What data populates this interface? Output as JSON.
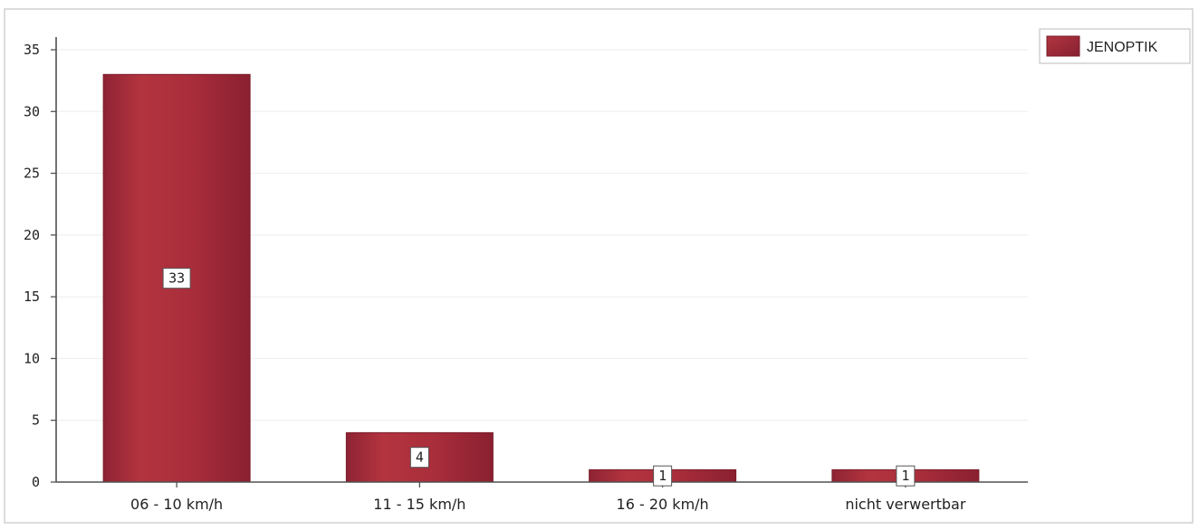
{
  "chart_data": {
    "type": "bar",
    "categories": [
      "06 - 10 km/h",
      "11 - 15 km/h",
      "16 - 20 km/h",
      "nicht verwertbar"
    ],
    "series": [
      {
        "name": "JENOPTIK",
        "values": [
          33,
          4,
          1,
          1
        ],
        "data_labels": [
          "33",
          "4",
          "1",
          "1"
        ],
        "color": "#a52a3a"
      }
    ],
    "ylim": [
      0,
      35
    ],
    "yticks": [
      0,
      5,
      10,
      15,
      20,
      25,
      30,
      35
    ],
    "legend_placement": "top-right",
    "grid": false,
    "title": "",
    "xlabel": "",
    "ylabel": ""
  }
}
